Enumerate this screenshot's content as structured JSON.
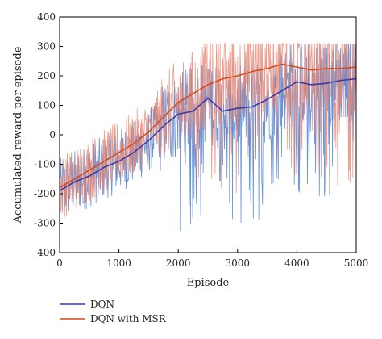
{
  "chart_data": {
    "type": "line",
    "title": "",
    "xlabel": "Episode",
    "ylabel": "Accumulated reward per episode",
    "xlim": [
      0,
      5000
    ],
    "ylim": [
      -400,
      400
    ],
    "xticks": [
      0,
      1000,
      2000,
      3000,
      4000,
      5000
    ],
    "yticks": [
      -400,
      -300,
      -200,
      -100,
      0,
      100,
      200,
      300,
      400
    ],
    "grid": false,
    "legend_position": "bottom-left, below plot",
    "series": [
      {
        "name": "DQN",
        "color": "#3a3aa8",
        "raw_color": "#4a7fd4",
        "x": [
          0,
          250,
          500,
          750,
          1000,
          1250,
          1500,
          1750,
          2000,
          2250,
          2500,
          2750,
          3000,
          3250,
          3500,
          3750,
          4000,
          4250,
          4500,
          4750,
          5000
        ],
        "values": [
          -190,
          -160,
          -140,
          -110,
          -90,
          -60,
          -20,
          30,
          70,
          80,
          125,
          80,
          90,
          95,
          120,
          150,
          180,
          170,
          175,
          185,
          190
        ]
      },
      {
        "name": "DQN with MSR",
        "color": "#d24a1e",
        "raw_color": "#e8836e",
        "x": [
          0,
          250,
          500,
          750,
          1000,
          1250,
          1500,
          1750,
          2000,
          2250,
          2500,
          2750,
          3000,
          3250,
          3500,
          3750,
          4000,
          4250,
          4500,
          4750,
          5000
        ],
        "values": [
          -180,
          -150,
          -120,
          -90,
          -60,
          -30,
          10,
          60,
          110,
          140,
          170,
          190,
          200,
          215,
          225,
          240,
          230,
          220,
          225,
          225,
          230
        ]
      }
    ]
  }
}
